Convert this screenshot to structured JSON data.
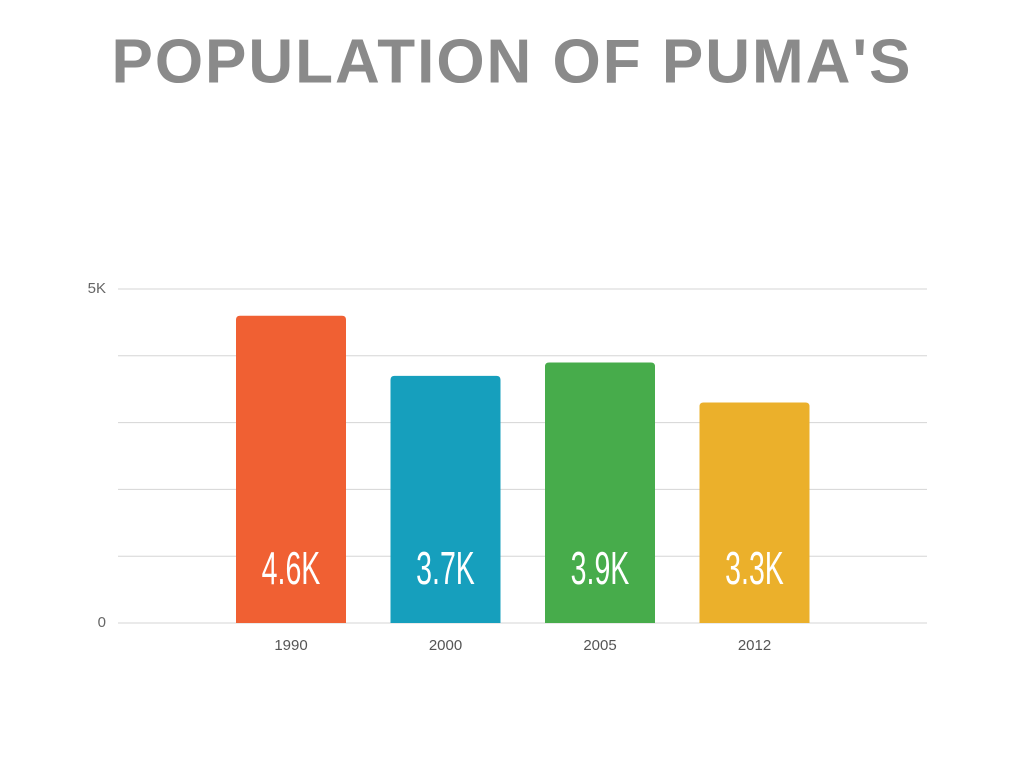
{
  "chart_data": {
    "type": "bar",
    "title": "POPULATION OF PUMA'S",
    "categories": [
      "1990",
      "2000",
      "2005",
      "2012"
    ],
    "values": [
      4600,
      3700,
      3900,
      3300
    ],
    "value_labels": [
      "4.6K",
      "3.7K",
      "3.9K",
      "3.3K"
    ],
    "colors": [
      "#f06033",
      "#169fbd",
      "#47ac4b",
      "#ebb02b"
    ],
    "ylim": [
      0,
      5000
    ],
    "yticks": [
      0,
      {
        "value": 5000,
        "label": "5K"
      }
    ],
    "minor_gridlines": [
      1000,
      2000,
      3000,
      4000
    ],
    "grid": true
  }
}
